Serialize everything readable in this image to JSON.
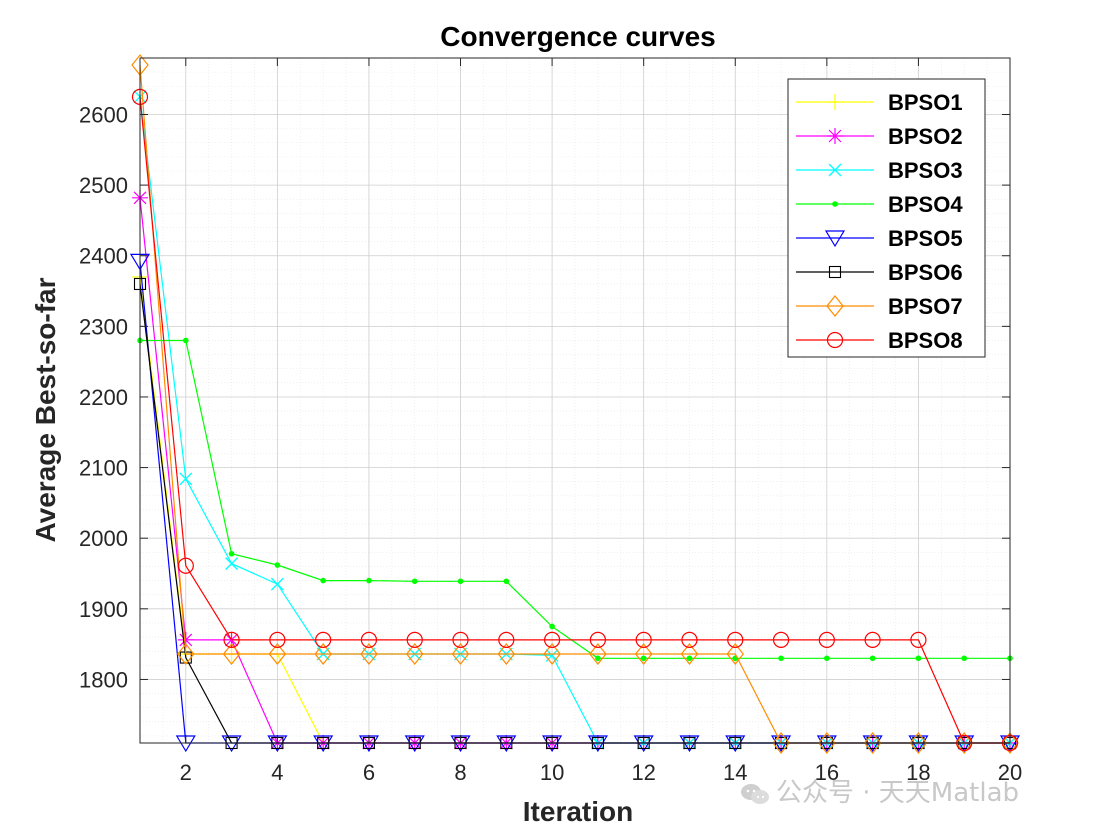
{
  "chart_data": {
    "type": "line",
    "title": "Convergence curves",
    "xlabel": "Iteration",
    "ylabel": "Average Best-so-far",
    "xlim": [
      1,
      20
    ],
    "ylim": [
      1710,
      2680
    ],
    "xticks": [
      2,
      4,
      6,
      8,
      10,
      12,
      14,
      16,
      18,
      20
    ],
    "yticks": [
      1800,
      1900,
      2000,
      2100,
      2200,
      2300,
      2400,
      2500,
      2600
    ],
    "grid": true,
    "legend_position": "top-right",
    "x": [
      1,
      2,
      3,
      4,
      5,
      6,
      7,
      8,
      9,
      10,
      11,
      12,
      13,
      14,
      15,
      16,
      17,
      18,
      19,
      20
    ],
    "series": [
      {
        "name": "BPSO1",
        "color": "#ffff00",
        "marker": "plus",
        "values": [
          2370,
          1836,
          1836,
          1836,
          1710,
          1710,
          1710,
          1710,
          1710,
          1710,
          1710,
          1710,
          1710,
          1710,
          1710,
          1710,
          1710,
          1710,
          1710,
          1710
        ]
      },
      {
        "name": "BPSO2",
        "color": "#ff00ff",
        "marker": "asterisk",
        "values": [
          2482,
          1856,
          1856,
          1710,
          1710,
          1710,
          1710,
          1710,
          1710,
          1710,
          1710,
          1710,
          1710,
          1710,
          1710,
          1710,
          1710,
          1710,
          1710,
          1710
        ]
      },
      {
        "name": "BPSO3",
        "color": "#00ffff",
        "marker": "cross",
        "values": [
          2625,
          2084,
          1964,
          1935,
          1836,
          1836,
          1836,
          1836,
          1836,
          1834,
          1710,
          1710,
          1710,
          1710,
          1710,
          1710,
          1710,
          1710,
          1710,
          1710
        ]
      },
      {
        "name": "BPSO4",
        "color": "#00ff00",
        "marker": "dot",
        "values": [
          2280,
          2280,
          1978,
          1962,
          1940,
          1940,
          1939,
          1939,
          1939,
          1875,
          1830,
          1830,
          1830,
          1830,
          1830,
          1830,
          1830,
          1830,
          1830,
          1830
        ]
      },
      {
        "name": "BPSO5",
        "color": "#0000ff",
        "marker": "triangle-down",
        "values": [
          2392,
          1710,
          1710,
          1710,
          1710,
          1710,
          1710,
          1710,
          1710,
          1710,
          1710,
          1710,
          1710,
          1710,
          1710,
          1710,
          1710,
          1710,
          1710,
          1710
        ]
      },
      {
        "name": "BPSO6",
        "color": "#000000",
        "marker": "square",
        "values": [
          2360,
          1831,
          1710,
          1710,
          1710,
          1710,
          1710,
          1710,
          1710,
          1710,
          1710,
          1710,
          1710,
          1710,
          1710,
          1710,
          1710,
          1710,
          1710,
          1710
        ]
      },
      {
        "name": "BPSO7",
        "color": "#ff8c00",
        "marker": "diamond",
        "values": [
          2670,
          1836,
          1836,
          1836,
          1836,
          1836,
          1836,
          1836,
          1836,
          1836,
          1836,
          1836,
          1836,
          1836,
          1710,
          1710,
          1710,
          1710,
          1710,
          1710
        ]
      },
      {
        "name": "BPSO8",
        "color": "#ff0000",
        "marker": "circle",
        "values": [
          2625,
          1961,
          1856,
          1856,
          1856,
          1856,
          1856,
          1856,
          1856,
          1856,
          1856,
          1856,
          1856,
          1856,
          1856,
          1856,
          1856,
          1856,
          1710,
          1710
        ]
      }
    ]
  },
  "watermark": {
    "text": "公众号 · 天天Matlab"
  }
}
